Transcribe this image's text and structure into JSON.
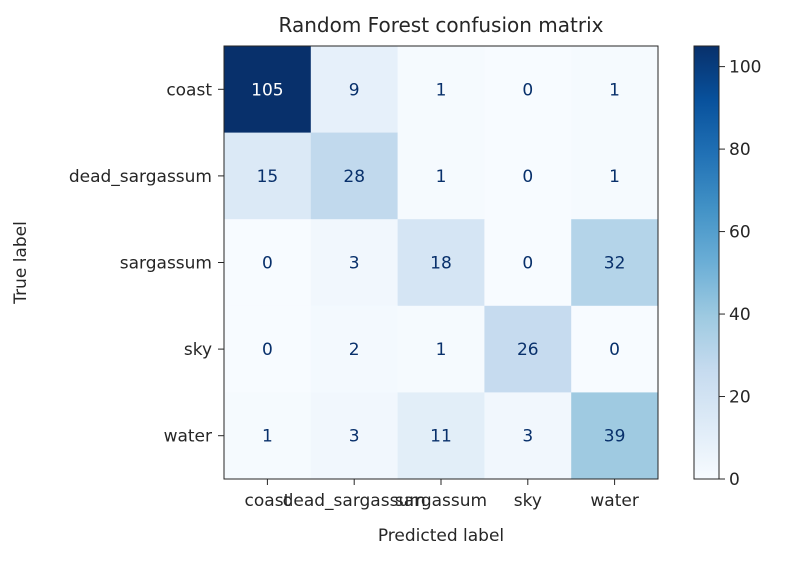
{
  "chart_data": {
    "type": "heatmap",
    "title": "Random Forest confusion matrix",
    "xlabel": "Predicted label",
    "ylabel": "True label",
    "x_categories": [
      "coast",
      "dead_sargassum",
      "sargassum",
      "sky",
      "water"
    ],
    "y_categories": [
      "coast",
      "dead_sargassum",
      "sargassum",
      "sky",
      "water"
    ],
    "values": [
      [
        105,
        9,
        1,
        0,
        1
      ],
      [
        15,
        28,
        1,
        0,
        1
      ],
      [
        0,
        3,
        18,
        0,
        32
      ],
      [
        0,
        2,
        1,
        26,
        0
      ],
      [
        1,
        3,
        11,
        3,
        39
      ]
    ],
    "colormap": "Blues",
    "colorbar": {
      "range": [
        0,
        105
      ],
      "ticks": [
        "0",
        "20",
        "40",
        "60",
        "80",
        "100"
      ]
    },
    "colors": {
      "low": "#f7fbff",
      "high": "#08306b",
      "text_dark": "#08306b",
      "text_light": "#ffffff"
    }
  }
}
